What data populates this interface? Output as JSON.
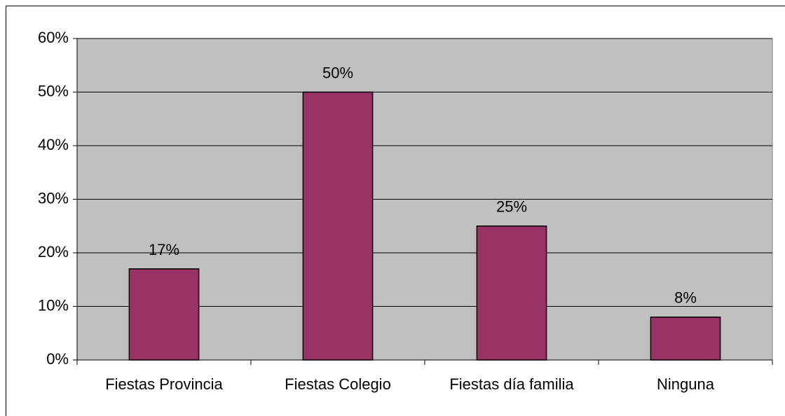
{
  "chart_data": {
    "type": "bar",
    "categories": [
      "Fiestas Provincia",
      "Fiestas Colegio",
      "Fiestas día familia",
      "Ninguna"
    ],
    "values": [
      17,
      50,
      25,
      8
    ],
    "value_labels": [
      "17%",
      "50%",
      "25%",
      "8%"
    ],
    "color": "#993366",
    "ylim": [
      0,
      60
    ],
    "yticks": [
      {
        "value": 0,
        "label": "0%"
      },
      {
        "value": 10,
        "label": "10%"
      },
      {
        "value": 20,
        "label": "20%"
      },
      {
        "value": 30,
        "label": "30%"
      },
      {
        "value": 40,
        "label": "40%"
      },
      {
        "value": 50,
        "label": "50%"
      },
      {
        "value": 60,
        "label": "60%"
      }
    ],
    "grid": true
  }
}
